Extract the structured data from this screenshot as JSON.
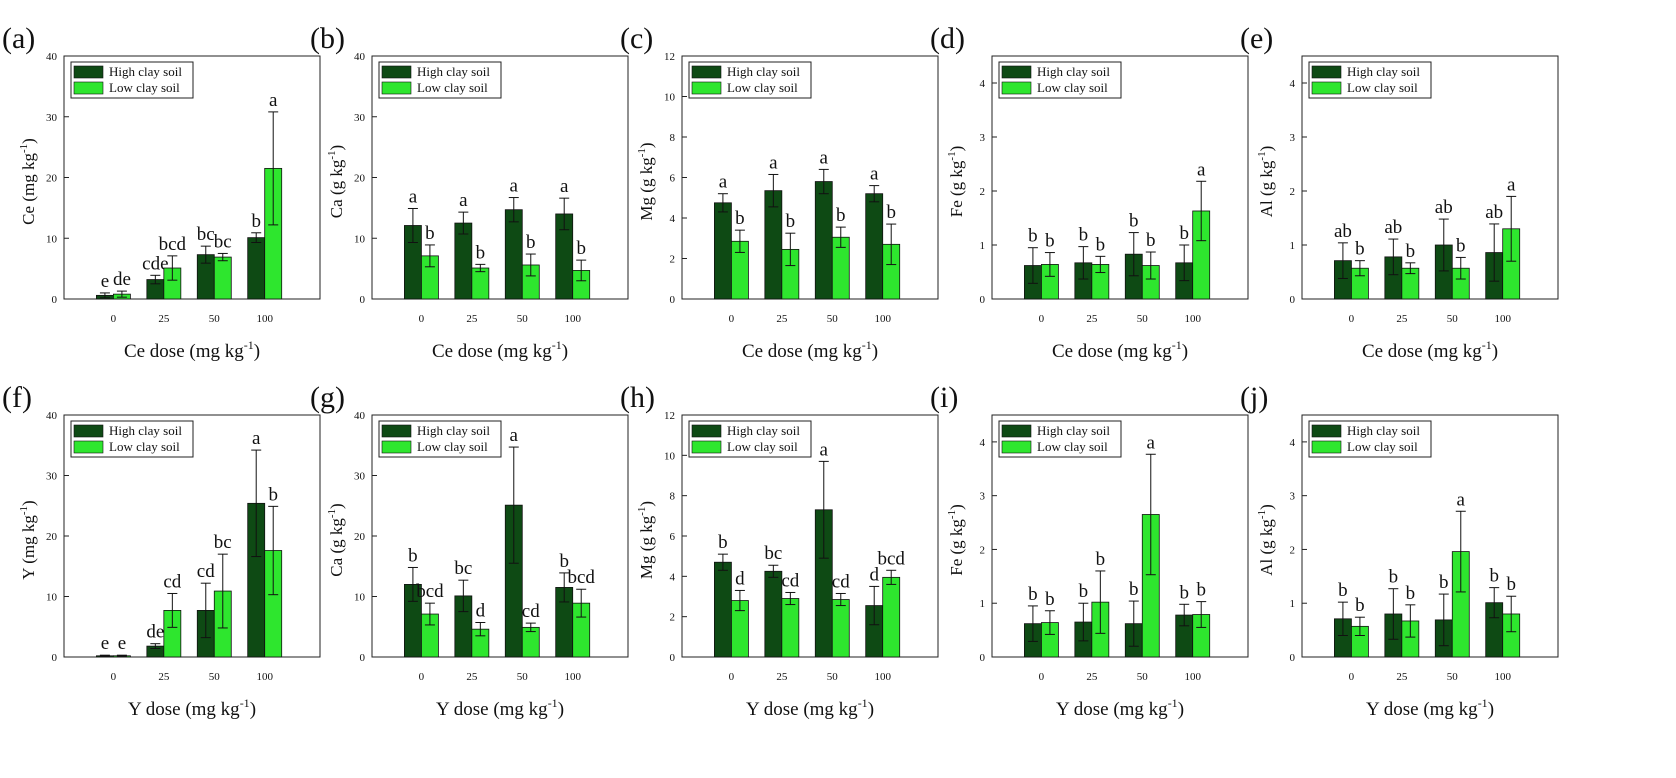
{
  "colors": {
    "high": "#0e4a14",
    "low": "#2ee62e"
  },
  "legend": {
    "high": "High clay soil",
    "low": "Low clay soil"
  },
  "chart_data": [
    {
      "id": "a",
      "label": "(a)",
      "type": "bar",
      "categories": [
        "0",
        "25",
        "50",
        "100"
      ],
      "xlabel": "Ce dose (mg kg",
      "ylabel": "Ce (mg kg",
      "ylim": [
        0,
        40
      ],
      "yticks": [
        "0",
        "10",
        "20",
        "30",
        "40"
      ],
      "series": [
        {
          "name": "High clay soil",
          "values": [
            0.6,
            3.2,
            7.3,
            10.1
          ],
          "errors": [
            0.4,
            0.7,
            1.4,
            0.8
          ],
          "letters": [
            "e",
            "cde",
            "bc",
            "b"
          ]
        },
        {
          "name": "Low clay soil",
          "values": [
            0.8,
            5.1,
            6.9,
            21.5
          ],
          "errors": [
            0.5,
            2.0,
            0.6,
            9.3
          ],
          "letters": [
            "de",
            "bcd",
            "bc",
            "a"
          ]
        }
      ]
    },
    {
      "id": "b",
      "label": "(b)",
      "type": "bar",
      "categories": [
        "0",
        "25",
        "50",
        "100"
      ],
      "xlabel": "Ce dose (mg kg",
      "ylabel": "Ca (g kg",
      "ylim": [
        0,
        40
      ],
      "yticks": [
        "0",
        "10",
        "20",
        "30",
        "40"
      ],
      "series": [
        {
          "name": "High clay soil",
          "values": [
            12.1,
            12.5,
            14.7,
            14.0
          ],
          "errors": [
            2.8,
            1.8,
            2.0,
            2.6
          ],
          "letters": [
            "a",
            "a",
            "a",
            "a"
          ]
        },
        {
          "name": "Low clay soil",
          "values": [
            7.1,
            5.1,
            5.6,
            4.7
          ],
          "errors": [
            1.8,
            0.6,
            1.8,
            1.7
          ],
          "letters": [
            "b",
            "b",
            "b",
            "b"
          ]
        }
      ]
    },
    {
      "id": "c",
      "label": "(c)",
      "type": "bar",
      "categories": [
        "0",
        "25",
        "50",
        "100"
      ],
      "xlabel": "Ce dose (mg kg",
      "ylabel": "Mg (g kg",
      "ylim": [
        0,
        12
      ],
      "yticks": [
        "0",
        "2",
        "4",
        "6",
        "8",
        "10",
        "12"
      ],
      "series": [
        {
          "name": "High clay soil",
          "values": [
            4.75,
            5.35,
            5.8,
            5.2
          ],
          "errors": [
            0.45,
            0.8,
            0.6,
            0.4
          ],
          "letters": [
            "a",
            "a",
            "a",
            "a"
          ]
        },
        {
          "name": "Low clay soil",
          "values": [
            2.85,
            2.45,
            3.05,
            2.7
          ],
          "errors": [
            0.55,
            0.8,
            0.5,
            1.0
          ],
          "letters": [
            "b",
            "b",
            "b",
            "b"
          ]
        }
      ]
    },
    {
      "id": "d",
      "label": "(d)",
      "type": "bar",
      "categories": [
        "0",
        "25",
        "50",
        "100"
      ],
      "xlabel": "Ce dose (mg kg",
      "ylabel": "Fe (g kg",
      "ylim": [
        0,
        4.5
      ],
      "yticks": [
        "0",
        "1",
        "2",
        "3",
        "4"
      ],
      "series": [
        {
          "name": "High clay soil",
          "values": [
            0.62,
            0.67,
            0.83,
            0.67
          ],
          "errors": [
            0.33,
            0.3,
            0.4,
            0.33
          ],
          "letters": [
            "b",
            "b",
            "b",
            "b"
          ]
        },
        {
          "name": "Low clay soil",
          "values": [
            0.64,
            0.64,
            0.62,
            1.63
          ],
          "errors": [
            0.22,
            0.15,
            0.25,
            0.55
          ],
          "letters": [
            "b",
            "b",
            "b",
            "a"
          ]
        }
      ]
    },
    {
      "id": "e",
      "label": "(e)",
      "type": "bar",
      "categories": [
        "0",
        "25",
        "50",
        "100"
      ],
      "xlabel": "Ce dose (mg kg",
      "ylabel": "Al (g kg",
      "ylim": [
        0,
        4.5
      ],
      "yticks": [
        "0",
        "1",
        "2",
        "3",
        "4"
      ],
      "series": [
        {
          "name": "High clay soil",
          "values": [
            0.71,
            0.78,
            1.0,
            0.86
          ],
          "errors": [
            0.33,
            0.33,
            0.48,
            0.53
          ],
          "letters": [
            "ab",
            "ab",
            "ab",
            "ab"
          ]
        },
        {
          "name": "Low clay soil",
          "values": [
            0.57,
            0.57,
            0.57,
            1.3
          ],
          "errors": [
            0.14,
            0.1,
            0.2,
            0.6
          ],
          "letters": [
            "b",
            "b",
            "b",
            "a"
          ]
        }
      ]
    },
    {
      "id": "f",
      "label": "(f)",
      "type": "bar",
      "categories": [
        "0",
        "25",
        "50",
        "100"
      ],
      "xlabel": "Y dose (mg kg",
      "ylabel": "Y (mg kg",
      "ylim": [
        0,
        40
      ],
      "yticks": [
        "0",
        "10",
        "20",
        "30",
        "40"
      ],
      "series": [
        {
          "name": "High clay soil",
          "values": [
            0.2,
            1.8,
            7.7,
            25.4
          ],
          "errors": [
            0.1,
            0.4,
            4.5,
            8.8
          ],
          "letters": [
            "e",
            "de",
            "cd",
            "a"
          ]
        },
        {
          "name": "Low clay soil",
          "values": [
            0.2,
            7.7,
            10.9,
            17.6
          ],
          "errors": [
            0.1,
            2.8,
            6.1,
            7.3
          ],
          "letters": [
            "e",
            "cd",
            "bc",
            "b"
          ]
        }
      ]
    },
    {
      "id": "g",
      "label": "(g)",
      "type": "bar",
      "categories": [
        "0",
        "25",
        "50",
        "100"
      ],
      "xlabel": "Y dose (mg kg",
      "ylabel": "Ca (g kg",
      "ylim": [
        0,
        40
      ],
      "yticks": [
        "0",
        "10",
        "20",
        "30",
        "40"
      ],
      "series": [
        {
          "name": "High clay soil",
          "values": [
            12.0,
            10.1,
            25.1,
            11.5
          ],
          "errors": [
            2.8,
            2.6,
            9.6,
            2.4
          ],
          "letters": [
            "b",
            "bc",
            "a",
            "b"
          ]
        },
        {
          "name": "Low clay soil",
          "values": [
            7.1,
            4.6,
            4.9,
            8.9
          ],
          "errors": [
            1.8,
            1.1,
            0.7,
            2.3
          ],
          "letters": [
            "bcd",
            "d",
            "cd",
            "bcd"
          ]
        }
      ]
    },
    {
      "id": "h",
      "label": "(h)",
      "type": "bar",
      "categories": [
        "0",
        "25",
        "50",
        "100"
      ],
      "xlabel": "Y dose (mg kg",
      "ylabel": "Mg (g kg",
      "ylim": [
        0,
        12
      ],
      "yticks": [
        "0",
        "2",
        "4",
        "6",
        "8",
        "10",
        "12"
      ],
      "series": [
        {
          "name": "High clay soil",
          "values": [
            4.7,
            4.25,
            7.3,
            2.55
          ],
          "errors": [
            0.4,
            0.3,
            2.4,
            0.95
          ],
          "letters": [
            "b",
            "bc",
            "a",
            "d"
          ]
        },
        {
          "name": "Low clay soil",
          "values": [
            2.8,
            2.9,
            2.85,
            3.95
          ],
          "errors": [
            0.5,
            0.3,
            0.3,
            0.35
          ],
          "letters": [
            "d",
            "cd",
            "cd",
            "bcd"
          ]
        }
      ]
    },
    {
      "id": "i",
      "label": "(i)",
      "type": "bar",
      "categories": [
        "0",
        "25",
        "50",
        "100"
      ],
      "xlabel": "Y dose (mg kg",
      "ylabel": "Fe (g kg",
      "ylim": [
        0,
        4.5
      ],
      "yticks": [
        "0",
        "1",
        "2",
        "3",
        "4"
      ],
      "series": [
        {
          "name": "High clay soil",
          "values": [
            0.62,
            0.65,
            0.62,
            0.78
          ],
          "errors": [
            0.33,
            0.35,
            0.42,
            0.2
          ],
          "letters": [
            "b",
            "b",
            "b",
            "b"
          ]
        },
        {
          "name": "Low clay soil",
          "values": [
            0.64,
            1.02,
            2.65,
            0.79
          ],
          "errors": [
            0.22,
            0.58,
            1.12,
            0.24
          ],
          "letters": [
            "b",
            "b",
            "a",
            "b"
          ]
        }
      ]
    },
    {
      "id": "j",
      "label": "(j)",
      "type": "bar",
      "categories": [
        "0",
        "25",
        "50",
        "100"
      ],
      "xlabel": "Y dose (mg kg",
      "ylabel": "Al (g kg",
      "ylim": [
        0,
        4.5
      ],
      "yticks": [
        "0",
        "1",
        "2",
        "3",
        "4"
      ],
      "series": [
        {
          "name": "High clay soil",
          "values": [
            0.71,
            0.8,
            0.69,
            1.01
          ],
          "errors": [
            0.31,
            0.47,
            0.48,
            0.28
          ],
          "letters": [
            "b",
            "b",
            "b",
            "b"
          ]
        },
        {
          "name": "Low clay soil",
          "values": [
            0.57,
            0.67,
            1.96,
            0.8
          ],
          "errors": [
            0.17,
            0.3,
            0.75,
            0.33
          ],
          "letters": [
            "b",
            "b",
            "a",
            "b"
          ]
        }
      ]
    }
  ],
  "exponent": "-1"
}
